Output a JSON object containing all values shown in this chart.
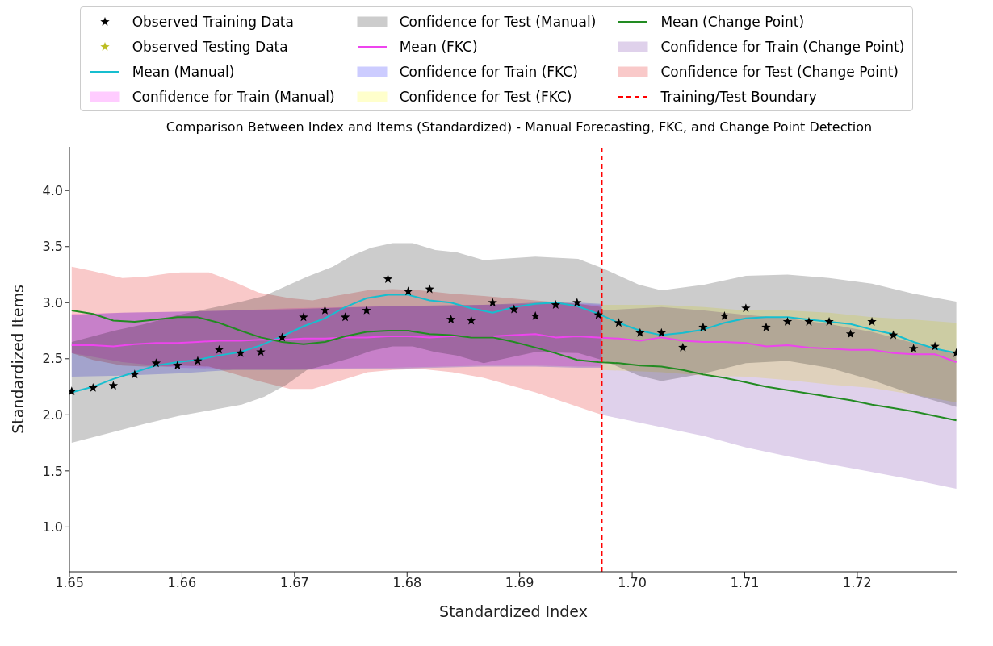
{
  "chart_data": {
    "type": "line",
    "title": "Comparison Between Index and Items (Standardized) - Manual Forecasting, FKC, and Change Point Detection",
    "xlabel": "Standardized Index",
    "ylabel": "Standardized Items",
    "x": [
      1.6502,
      1.6521,
      1.6539,
      1.6558,
      1.6577,
      1.6596,
      1.6614,
      1.6633,
      1.6652,
      1.667,
      1.6689,
      1.6708,
      1.6727,
      1.6745,
      1.6764,
      1.6783,
      1.6801,
      1.682,
      1.6839,
      1.6857,
      1.6876,
      1.6895,
      1.6914,
      1.6932,
      1.6951,
      1.697,
      1.6988,
      1.7007,
      1.7026,
      1.7045,
      1.7063,
      1.7082,
      1.7101,
      1.7119,
      1.7138,
      1.7157,
      1.7175,
      1.7194,
      1.7213,
      1.7232,
      1.725,
      1.7269,
      1.7288
    ],
    "series": [
      {
        "name": "Observed Training Data",
        "type": "scatter",
        "marker": "star",
        "color": "#000000",
        "values": [
          2.21,
          2.24,
          2.26,
          2.36,
          2.46,
          2.44,
          2.48,
          2.58,
          2.55,
          2.56,
          2.69,
          2.87,
          2.93,
          2.87,
          2.93,
          3.21,
          3.1,
          3.12,
          2.85,
          2.84,
          3.0,
          2.94,
          2.88,
          2.98,
          3.0,
          2.89,
          2.82,
          2.73,
          2.73,
          2.6,
          2.78,
          2.88,
          2.95,
          2.78,
          2.83,
          2.83,
          2.83,
          2.72,
          2.83,
          2.71,
          2.59,
          2.61,
          2.55
        ]
      },
      {
        "name": "Observed Testing Data",
        "type": "scatter",
        "marker": "star",
        "color": "#bcbd22",
        "values": [
          null,
          null,
          null,
          null,
          null,
          null,
          null,
          null,
          null,
          null,
          null,
          null,
          null,
          null,
          null,
          null,
          null,
          null,
          null,
          null,
          null,
          null,
          null,
          null,
          null,
          null,
          null,
          null,
          null,
          null,
          null,
          null,
          null,
          null,
          null,
          null,
          null,
          null,
          null,
          null,
          null,
          null,
          null
        ]
      },
      {
        "name": "Mean (Manual)",
        "type": "line",
        "color": "#17becf",
        "values": [
          2.2,
          2.25,
          2.32,
          2.38,
          2.44,
          2.47,
          2.49,
          2.53,
          2.56,
          2.62,
          2.7,
          2.79,
          2.86,
          2.96,
          3.04,
          3.07,
          3.07,
          3.02,
          3.0,
          2.95,
          2.91,
          2.96,
          2.99,
          3.0,
          2.97,
          2.9,
          2.82,
          2.75,
          2.71,
          2.73,
          2.76,
          2.82,
          2.86,
          2.87,
          2.87,
          2.85,
          2.83,
          2.81,
          2.76,
          2.72,
          2.65,
          2.59,
          2.55
        ]
      },
      {
        "name": "Confidence for Train (Manual)",
        "color": "#ffccff",
        "x": [
          1.6502,
          1.6547,
          1.6597,
          1.6645,
          1.6696,
          1.6787,
          1.6868,
          1.6914,
          1.6952,
          1.6973
        ],
        "values": [
          null,
          null,
          null,
          null,
          null,
          null,
          null,
          null,
          null,
          null
        ],
        "lower": [
          2.55,
          2.47,
          2.42,
          2.41,
          2.41,
          2.42,
          2.44,
          2.44,
          2.43,
          2.43
        ],
        "upper": [
          2.9,
          2.91,
          2.92,
          2.93,
          2.95,
          2.97,
          2.98,
          2.99,
          2.99,
          2.98
        ]
      },
      {
        "name": "Confidence for Test (Manual)",
        "color": "#cccccc",
        "x": [
          1.6502,
          1.654,
          1.6567,
          1.6597,
          1.6625,
          1.6653,
          1.6673,
          1.6693,
          1.6711,
          1.6734,
          1.6751,
          1.6768,
          1.6787,
          1.6805,
          1.6825,
          1.6844,
          1.6868,
          1.6914,
          1.6952,
          1.6973,
          1.7006,
          1.7026,
          1.7064,
          1.7101,
          1.7138,
          1.7175,
          1.7213,
          1.725,
          1.7288
        ],
        "values": [
          null,
          null,
          null,
          null,
          null,
          null,
          null,
          null,
          null,
          null,
          null,
          null,
          null,
          null,
          null,
          null,
          null,
          null,
          null,
          null,
          null,
          null,
          null,
          null,
          null,
          null,
          null,
          null,
          null
        ],
        "lower": [
          1.75,
          1.85,
          1.92,
          1.99,
          2.04,
          2.09,
          2.16,
          2.27,
          2.4,
          2.46,
          2.51,
          2.57,
          2.61,
          2.61,
          2.56,
          2.53,
          2.46,
          2.56,
          2.55,
          2.49,
          2.35,
          2.3,
          2.37,
          2.46,
          2.48,
          2.42,
          2.31,
          2.18,
          2.07
        ],
        "upper": [
          2.65,
          2.75,
          2.81,
          2.89,
          2.95,
          3.01,
          3.06,
          3.15,
          3.23,
          3.32,
          3.42,
          3.49,
          3.53,
          3.53,
          3.47,
          3.45,
          3.38,
          3.41,
          3.39,
          3.31,
          3.16,
          3.11,
          3.16,
          3.24,
          3.25,
          3.22,
          3.17,
          3.08,
          3.01
        ]
      },
      {
        "name": "Mean (FKC)",
        "type": "line",
        "color": "#ee44ee",
        "values": [
          2.62,
          2.62,
          2.61,
          2.63,
          2.64,
          2.64,
          2.65,
          2.66,
          2.66,
          2.67,
          2.67,
          2.68,
          2.68,
          2.69,
          2.69,
          2.7,
          2.7,
          2.69,
          2.7,
          2.7,
          2.7,
          2.71,
          2.72,
          2.69,
          2.7,
          2.69,
          2.68,
          2.66,
          2.69,
          2.66,
          2.65,
          2.65,
          2.64,
          2.61,
          2.62,
          2.6,
          2.59,
          2.58,
          2.58,
          2.55,
          2.54,
          2.54,
          2.47
        ]
      },
      {
        "name": "Confidence for Train (FKC)",
        "color": "#ccccff",
        "x": [
          1.6502,
          1.6547,
          1.6597,
          1.6645,
          1.6696,
          1.6787,
          1.6868,
          1.6914,
          1.6952,
          1.6973
        ],
        "values": [
          null,
          null,
          null,
          null,
          null,
          null,
          null,
          null,
          null,
          null
        ],
        "lower": [
          2.34,
          2.35,
          2.37,
          2.4,
          2.4,
          2.41,
          2.43,
          2.43,
          2.42,
          2.42
        ],
        "upper": [
          2.89,
          2.91,
          2.92,
          2.93,
          2.94,
          2.97,
          2.98,
          3.0,
          3.0,
          2.99
        ]
      },
      {
        "name": "Confidence for Test (FKC)",
        "color": "#ffffcc",
        "x": [
          1.6973,
          1.7026,
          1.7064,
          1.7101,
          1.7138,
          1.7175,
          1.7213,
          1.725,
          1.7288
        ],
        "values": [
          null,
          null,
          null,
          null,
          null,
          null,
          null,
          null,
          null
        ],
        "lower": [
          2.4,
          2.38,
          2.35,
          2.34,
          2.31,
          2.27,
          2.24,
          2.18,
          2.11
        ],
        "upper": [
          2.98,
          2.98,
          2.96,
          2.93,
          2.93,
          2.91,
          2.87,
          2.85,
          2.82
        ]
      },
      {
        "name": "Mean (Change Point)",
        "type": "line",
        "color": "#228b22",
        "values": [
          2.93,
          2.9,
          2.84,
          2.83,
          2.85,
          2.87,
          2.87,
          2.82,
          2.75,
          2.69,
          2.65,
          2.63,
          2.65,
          2.7,
          2.74,
          2.75,
          2.75,
          2.72,
          2.71,
          2.69,
          2.69,
          2.65,
          2.6,
          2.55,
          2.49,
          2.47,
          2.46,
          2.44,
          2.43,
          2.4,
          2.36,
          2.33,
          2.29,
          2.25,
          2.22,
          2.19,
          2.16,
          2.13,
          2.09,
          2.06,
          2.03,
          1.99,
          1.95
        ]
      },
      {
        "name": "Confidence for Train (Change Point)",
        "color": "#dfd1eb",
        "x": [
          1.6973,
          1.7026,
          1.7064,
          1.7101,
          1.7138,
          1.7175,
          1.7213,
          1.725,
          1.7288
        ],
        "values": [
          null,
          null,
          null,
          null,
          null,
          null,
          null,
          null,
          null
        ],
        "lower": [
          2.0,
          1.89,
          1.81,
          1.71,
          1.63,
          1.56,
          1.49,
          1.42,
          1.34
        ],
        "upper": [
          2.93,
          2.96,
          2.93,
          2.89,
          2.86,
          2.81,
          2.74,
          2.64,
          2.55
        ]
      },
      {
        "name": "Confidence for Test (Change Point)",
        "color": "#f9c9c9",
        "x": [
          1.6502,
          1.6521,
          1.6547,
          1.6567,
          1.6587,
          1.6599,
          1.6624,
          1.6645,
          1.6668,
          1.6696,
          1.6716,
          1.6736,
          1.6765,
          1.6787,
          1.6811,
          1.684,
          1.6868,
          1.6914,
          1.6952,
          1.6973
        ],
        "values": [
          null,
          null,
          null,
          null,
          null,
          null,
          null,
          null,
          null,
          null,
          null,
          null,
          null,
          null,
          null,
          null,
          null,
          null,
          null,
          null
        ],
        "lower": [
          2.55,
          2.49,
          2.44,
          2.43,
          2.43,
          2.44,
          2.43,
          2.37,
          2.3,
          2.23,
          2.23,
          2.29,
          2.38,
          2.4,
          2.41,
          2.38,
          2.33,
          2.2,
          2.07,
          2.0
        ],
        "upper": [
          3.32,
          3.28,
          3.22,
          3.23,
          3.26,
          3.27,
          3.27,
          3.19,
          3.09,
          3.04,
          3.02,
          3.06,
          3.11,
          3.12,
          3.11,
          3.08,
          3.06,
          3.02,
          2.99,
          2.96
        ]
      }
    ],
    "ref_lines": [
      {
        "axis": "x",
        "value": 1.6973,
        "label": "Training/Test Boundary",
        "color": "#ff0000",
        "line_style": "dashed"
      }
    ],
    "xlim": [
      1.65,
      1.7289
    ],
    "ylim": [
      0.6,
      4.39
    ],
    "xticks": [
      1.65,
      1.66,
      1.67,
      1.68,
      1.69,
      {
        "value": 1.7,
        "label": "1.70"
      },
      1.71,
      1.72
    ],
    "yticks": [
      {
        "value": 1,
        "label": "1.0"
      },
      {
        "value": 1.5,
        "label": "1.5"
      },
      {
        "value": 2,
        "label": "2.0"
      },
      {
        "value": 2.5,
        "label": "2.5"
      },
      {
        "value": 3,
        "label": "3.0"
      },
      {
        "value": 3.5,
        "label": "3.5"
      },
      {
        "value": 4,
        "label": "4.0"
      }
    ],
    "grid": false,
    "legend": "top",
    "marker": "none",
    "line_style": "solid"
  }
}
